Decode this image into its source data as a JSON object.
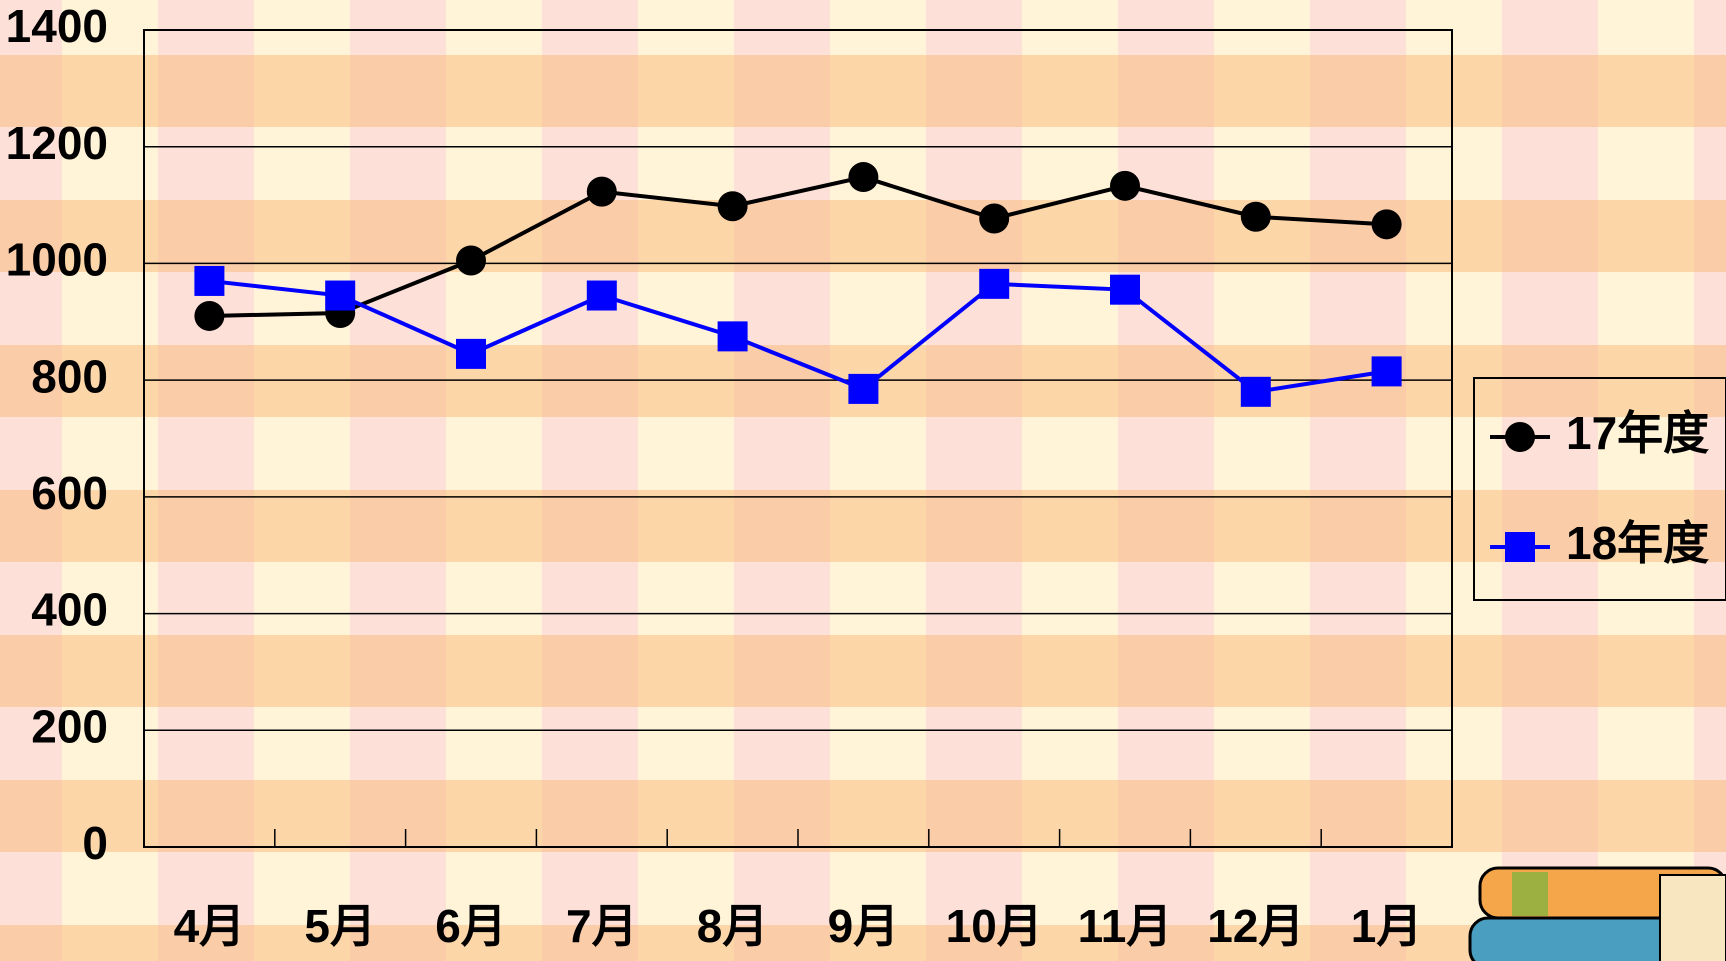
{
  "chart_data": {
    "type": "line",
    "categories": [
      "4月",
      "5月",
      "6月",
      "7月",
      "8月",
      "9月",
      "10月",
      "11月",
      "12月",
      "1月"
    ],
    "series": [
      {
        "name": "17年度",
        "color": "#000000",
        "marker": "circle",
        "values": [
          910,
          915,
          1005,
          1123,
          1098,
          1148,
          1077,
          1133,
          1080,
          1067
        ]
      },
      {
        "name": "18年度",
        "color": "#0000ff",
        "marker": "square",
        "values": [
          970,
          945,
          845,
          945,
          875,
          785,
          965,
          955,
          780,
          815
        ]
      }
    ],
    "ylim": [
      0,
      1400
    ],
    "yticks": [
      0,
      200,
      400,
      600,
      800,
      1000,
      1200,
      1400
    ],
    "grid": true,
    "legend": "right"
  }
}
